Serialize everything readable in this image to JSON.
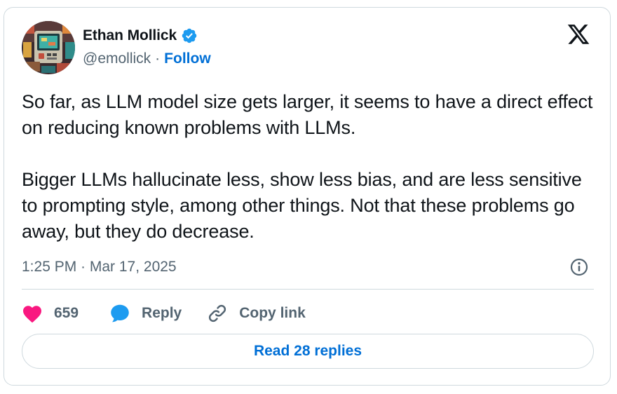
{
  "author": {
    "name": "Ethan Mollick",
    "handle": "@emollick",
    "separator": "·",
    "follow_label": "Follow",
    "verified": true,
    "verified_color": "#1d9bf0"
  },
  "tweet": {
    "paragraphs": [
      "So far, as LLM model size gets larger, it seems to have a direct effect on reducing known problems with LLMs.",
      "Bigger LLMs hallucinate less, show less bias, and are less sensitive to prompting style, among other things. Not that these problems go away, but they do decrease."
    ],
    "timestamp": "1:25 PM · Mar 17, 2025"
  },
  "actions": {
    "like_count": "659",
    "reply_label": "Reply",
    "copy_link_label": "Copy link"
  },
  "read_replies_label": "Read 28 replies",
  "icons": {
    "brand": "x-logo-icon",
    "like": "heart-icon",
    "reply": "speech-bubble-icon",
    "copy": "link-icon",
    "info": "info-icon",
    "verified": "verified-badge-icon"
  },
  "colors": {
    "text": "#0f1419",
    "secondary": "#536471",
    "link": "#006fd6",
    "like": "#f91880",
    "reply": "#1d9bf0",
    "border": "#cfd9de"
  }
}
